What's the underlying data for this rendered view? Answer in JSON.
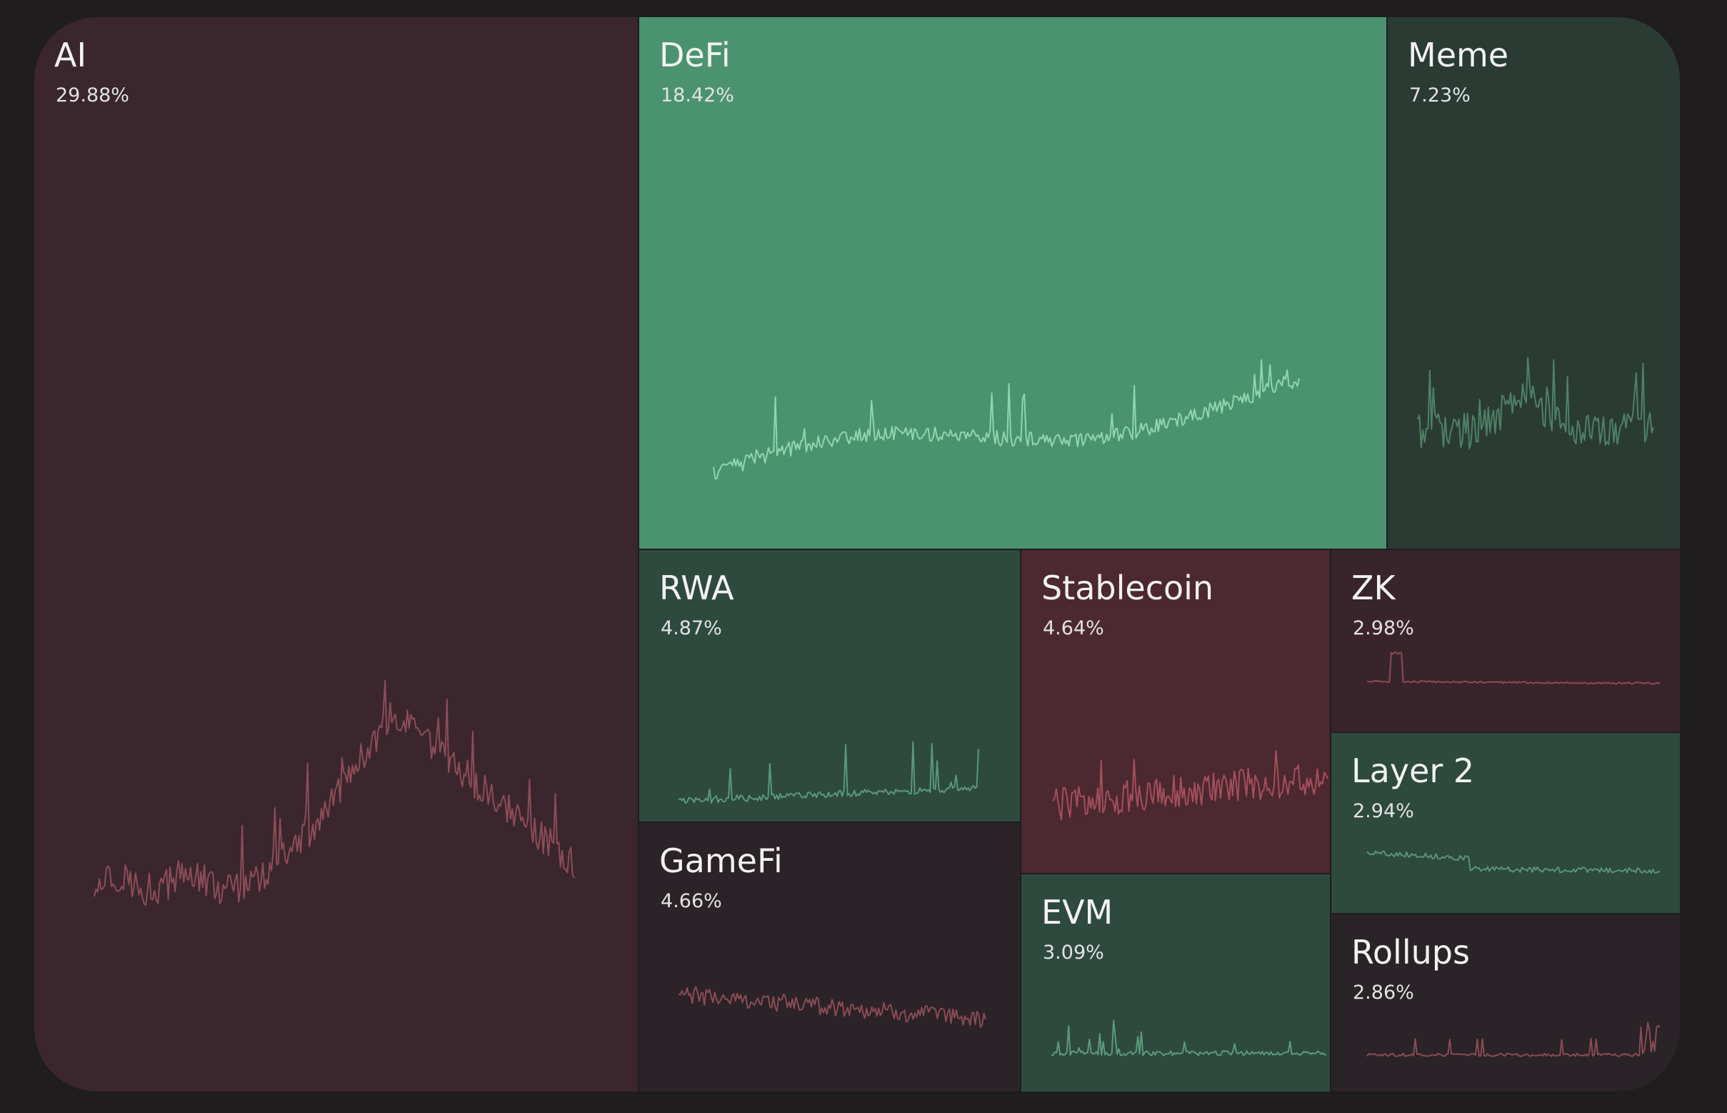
{
  "chart_data": {
    "type": "treemap",
    "sectors": [
      {
        "name": "AI",
        "percent": "29.88%",
        "value": 29.88,
        "trend": "down",
        "color": "#3b262e",
        "line_color": "#8c4d58"
      },
      {
        "name": "DeFi",
        "percent": "18.42%",
        "value": 18.42,
        "trend": "up",
        "color": "#4b9370",
        "line_color": "#8fd6ad"
      },
      {
        "name": "Meme",
        "percent": "7.23%",
        "value": 7.23,
        "trend": "up",
        "color": "#2a3b34",
        "line_color": "#4f8066"
      },
      {
        "name": "RWA",
        "percent": "4.87%",
        "value": 4.87,
        "trend": "up",
        "color": "#2e4a3e",
        "line_color": "#5a987a"
      },
      {
        "name": "Stablecoin",
        "percent": "4.64%",
        "value": 4.64,
        "trend": "down",
        "color": "#4c2830",
        "line_color": "#a34f5c"
      },
      {
        "name": "GameFi",
        "percent": "4.66%",
        "value": 4.66,
        "trend": "down",
        "color": "#2b2328",
        "line_color": "#8a4b55"
      },
      {
        "name": "ZK",
        "percent": "2.98%",
        "value": 2.98,
        "trend": "down",
        "color": "#3a242b",
        "line_color": "#8d4a55"
      },
      {
        "name": "Layer 2",
        "percent": "2.94%",
        "value": 2.94,
        "trend": "up",
        "color": "#2d4a3d",
        "line_color": "#5a9477"
      },
      {
        "name": "EVM",
        "percent": "3.09%",
        "value": 3.09,
        "trend": "up",
        "color": "#2e4a3f",
        "line_color": "#5c9a7c"
      },
      {
        "name": "Rollups",
        "percent": "2.86%",
        "value": 2.86,
        "trend": "down",
        "color": "#2a2327",
        "line_color": "#8a4b55"
      }
    ]
  }
}
